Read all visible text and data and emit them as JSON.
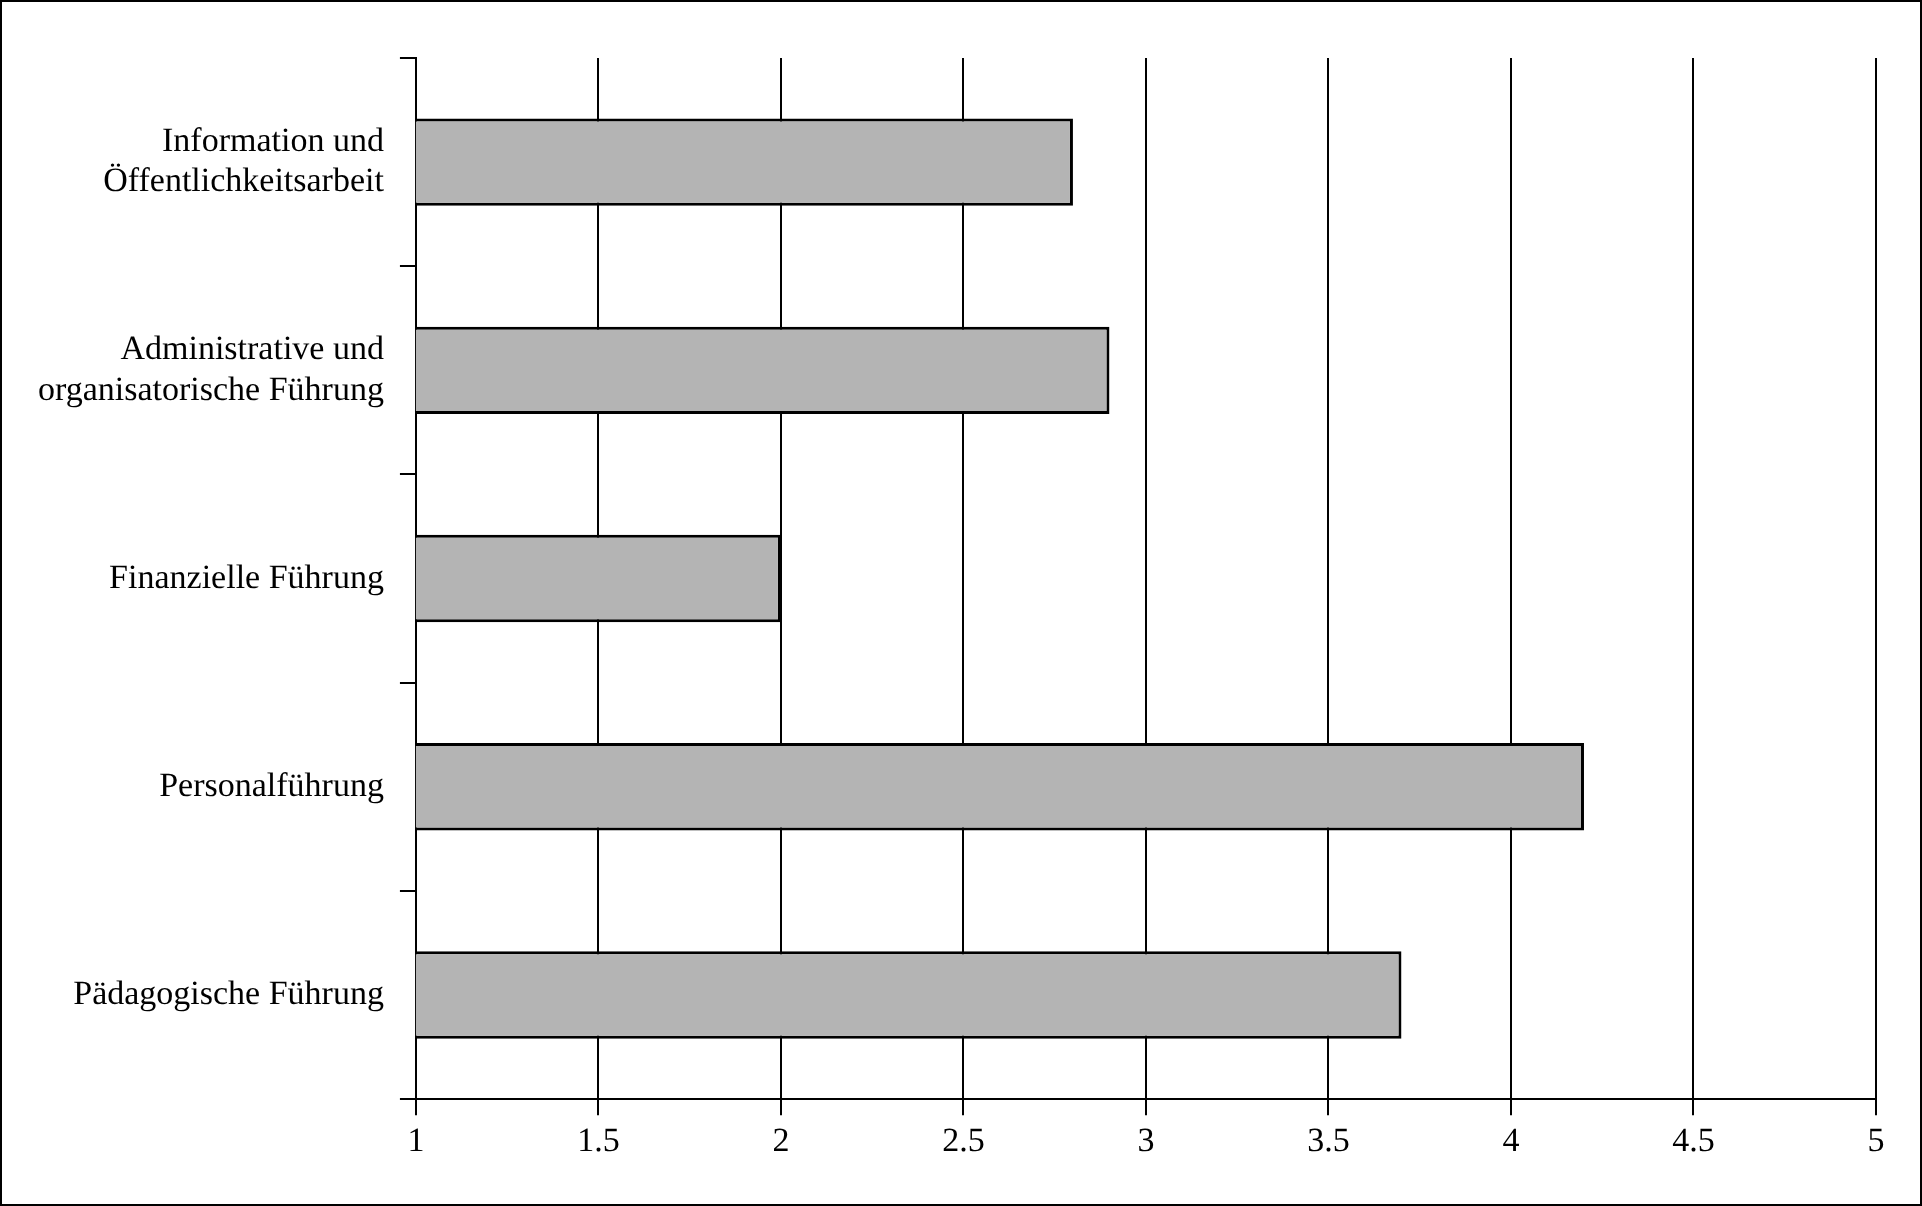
{
  "chart_data": {
    "type": "bar",
    "orientation": "horizontal",
    "categories": [
      "Information und Öffentlichkeitsarbeit",
      "Administrative und organisatorische Führung",
      "Finanzielle Führung",
      "Personalführung",
      "Pädagogische Führung"
    ],
    "values": [
      2.8,
      2.9,
      2.0,
      4.2,
      3.7
    ],
    "color": "#b4b4b4",
    "xlim": [
      1,
      5
    ],
    "xticks": [
      1,
      1.5,
      2,
      2.5,
      3,
      3.5,
      4,
      4.5,
      5
    ],
    "grid": "x"
  }
}
